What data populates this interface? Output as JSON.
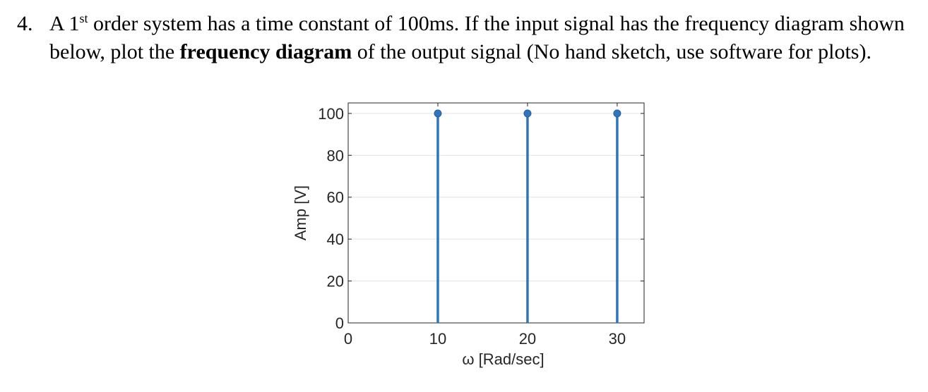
{
  "question": {
    "number": "4.",
    "text_1": "A 1",
    "superscript": "st",
    "text_2": " order system has a time constant of 100ms. If the input signal has the frequency diagram shown below, plot the ",
    "bold": "frequency diagram",
    "text_3": " of the output signal (No hand sketch, use software for plots)."
  },
  "chart_data": {
    "type": "stem",
    "x": [
      10,
      20,
      30
    ],
    "y": [
      100,
      100,
      100
    ],
    "xlabel": "ω [Rad/sec]",
    "ylabel": "Amp [V]",
    "xlim": [
      0,
      33
    ],
    "ylim": [
      0,
      105
    ],
    "xticks": [
      0,
      10,
      20,
      30
    ],
    "yticks": [
      0,
      20,
      40,
      60,
      80,
      100
    ],
    "grid": "horizontal",
    "color": "#2f75bd"
  }
}
